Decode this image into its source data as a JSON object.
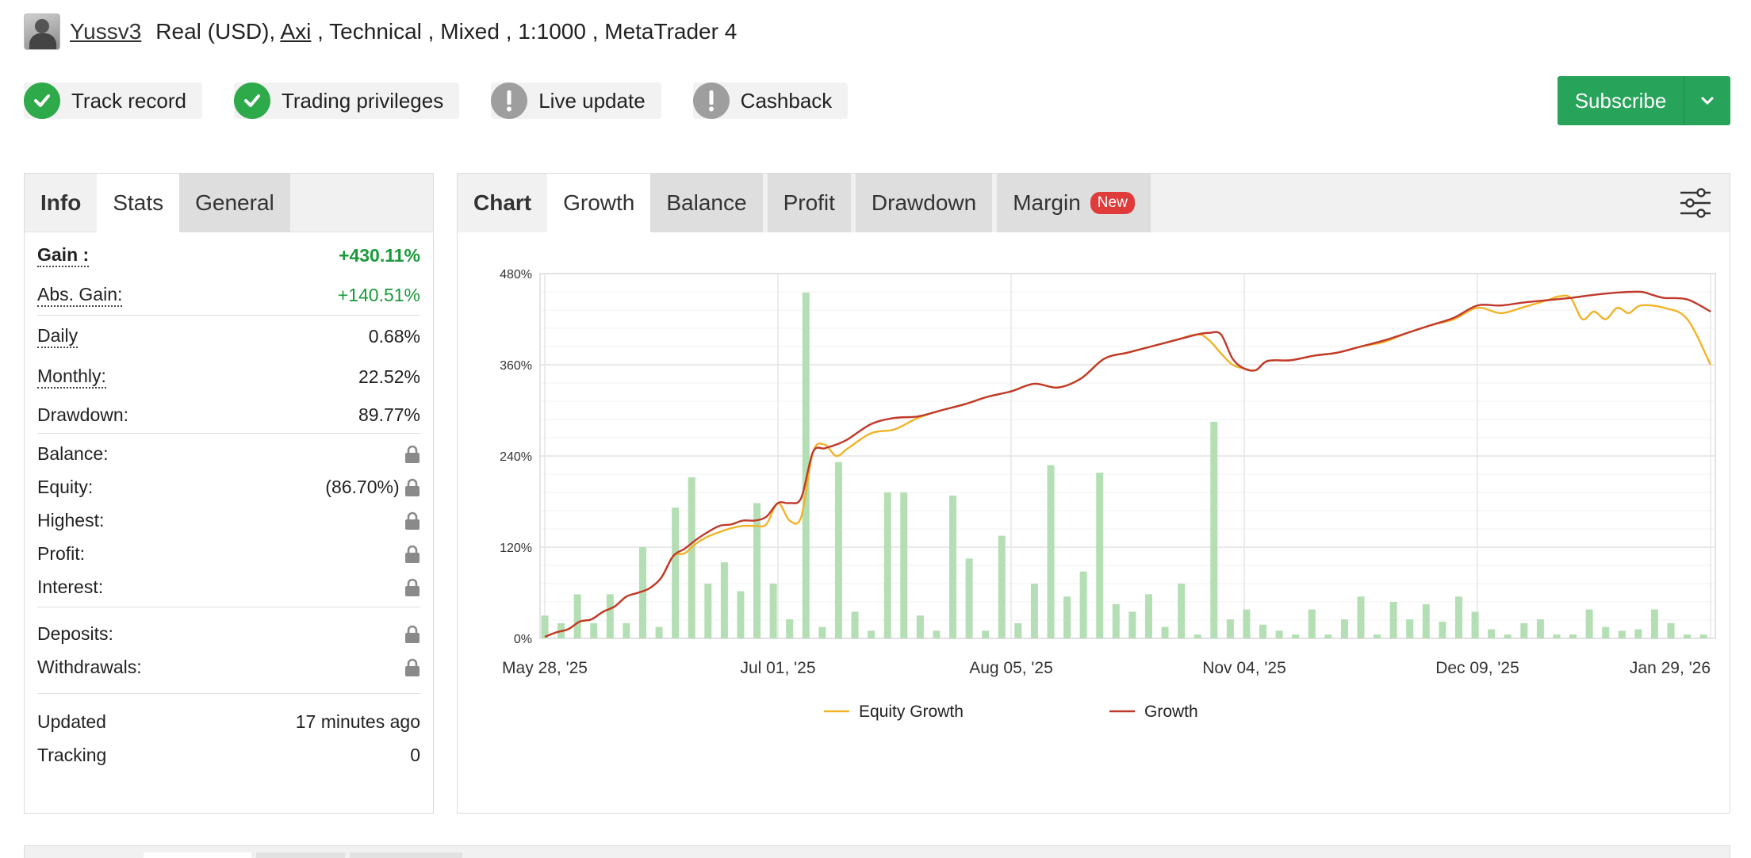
{
  "header": {
    "username": "Yussv3",
    "account_prefix": "Real (USD), ",
    "broker": "Axi",
    "account_suffix": " , Technical , Mixed , 1:1000 , MetaTrader 4"
  },
  "badges": [
    {
      "label": "Track record",
      "status": "ok",
      "icon": "check-icon"
    },
    {
      "label": "Trading privileges",
      "status": "ok",
      "icon": "check-icon"
    },
    {
      "label": "Live update",
      "status": "warn",
      "icon": "exclamation-icon"
    },
    {
      "label": "Cashback",
      "status": "warn",
      "icon": "exclamation-icon"
    }
  ],
  "subscribe": {
    "label": "Subscribe"
  },
  "colors": {
    "green": "#27a35a",
    "gain": "#1a9a3a",
    "equity_line": "#f0b429",
    "growth_line": "#c0392b",
    "bars": "#b4deb4"
  },
  "left_tabs": {
    "title": "Info",
    "active": "Stats",
    "other": "General"
  },
  "stats": {
    "gain_label": "Gain :",
    "gain": "+430.11%",
    "abs_gain_label": "Abs. Gain:",
    "abs_gain": "+140.51%",
    "daily_label": "Daily",
    "daily": "0.68%",
    "monthly_label": "Monthly:",
    "monthly": "22.52%",
    "drawdown_label": "Drawdown:",
    "drawdown": "89.77%",
    "balance_label": "Balance:",
    "equity_label": "Equity:",
    "equity": "(86.70%)",
    "highest_label": "Highest:",
    "profit_label": "Profit:",
    "interest_label": "Interest:",
    "deposits_label": "Deposits:",
    "withdrawals_label": "Withdrawals:",
    "updated_label": "Updated",
    "updated": "17 minutes ago",
    "tracking_label": "Tracking",
    "tracking": "0"
  },
  "chart_tabs": {
    "title": "Chart",
    "active": "Growth",
    "tabs": [
      "Balance",
      "Profit",
      "Drawdown",
      "Margin"
    ],
    "new_badge": "New"
  },
  "chart_data": {
    "type": "line",
    "ylim": [
      0,
      480
    ],
    "yticks": [
      "480%",
      "360%",
      "240%",
      "120%",
      "0%"
    ],
    "ytick_values": [
      480,
      360,
      240,
      120,
      0
    ],
    "xticks": [
      "May 28, '25",
      "Jul 01, '25",
      "Aug 05, '25",
      "Nov 04, '25",
      "Dec 09, '25",
      "Jan 29, '26"
    ],
    "xtick_pos": [
      0,
      0.2,
      0.4,
      0.6,
      0.8,
      1.0
    ],
    "legend": [
      "Equity Growth",
      "Growth"
    ],
    "growth": [
      [
        0,
        2
      ],
      [
        0.01,
        8
      ],
      [
        0.02,
        12
      ],
      [
        0.03,
        22
      ],
      [
        0.04,
        25
      ],
      [
        0.05,
        35
      ],
      [
        0.06,
        42
      ],
      [
        0.07,
        55
      ],
      [
        0.08,
        60
      ],
      [
        0.09,
        66
      ],
      [
        0.1,
        80
      ],
      [
        0.11,
        108
      ],
      [
        0.12,
        118
      ],
      [
        0.13,
        130
      ],
      [
        0.14,
        140
      ],
      [
        0.15,
        148
      ],
      [
        0.16,
        150
      ],
      [
        0.17,
        155
      ],
      [
        0.18,
        155
      ],
      [
        0.19,
        160
      ],
      [
        0.2,
        178
      ],
      [
        0.21,
        178
      ],
      [
        0.22,
        185
      ],
      [
        0.23,
        245
      ],
      [
        0.24,
        250
      ],
      [
        0.25,
        255
      ],
      [
        0.26,
        262
      ],
      [
        0.28,
        282
      ],
      [
        0.3,
        290
      ],
      [
        0.32,
        292
      ],
      [
        0.34,
        300
      ],
      [
        0.36,
        308
      ],
      [
        0.38,
        318
      ],
      [
        0.4,
        325
      ],
      [
        0.42,
        335
      ],
      [
        0.44,
        330
      ],
      [
        0.46,
        342
      ],
      [
        0.48,
        368
      ],
      [
        0.5,
        376
      ],
      [
        0.52,
        384
      ],
      [
        0.54,
        392
      ],
      [
        0.56,
        400
      ],
      [
        0.57,
        402
      ],
      [
        0.58,
        400
      ],
      [
        0.59,
        368
      ],
      [
        0.6,
        355
      ],
      [
        0.61,
        353
      ],
      [
        0.62,
        365
      ],
      [
        0.64,
        366
      ],
      [
        0.66,
        372
      ],
      [
        0.68,
        376
      ],
      [
        0.7,
        384
      ],
      [
        0.72,
        392
      ],
      [
        0.74,
        402
      ],
      [
        0.76,
        412
      ],
      [
        0.78,
        422
      ],
      [
        0.8,
        438
      ],
      [
        0.82,
        438
      ],
      [
        0.84,
        442
      ],
      [
        0.86,
        445
      ],
      [
        0.88,
        448
      ],
      [
        0.9,
        452
      ],
      [
        0.92,
        455
      ],
      [
        0.94,
        456
      ],
      [
        0.95,
        452
      ],
      [
        0.96,
        448
      ],
      [
        0.98,
        446
      ],
      [
        1.0,
        430
      ]
    ],
    "equity": [
      [
        0,
        2
      ],
      [
        0.01,
        8
      ],
      [
        0.02,
        12
      ],
      [
        0.03,
        22
      ],
      [
        0.04,
        25
      ],
      [
        0.05,
        35
      ],
      [
        0.06,
        42
      ],
      [
        0.07,
        55
      ],
      [
        0.08,
        60
      ],
      [
        0.09,
        66
      ],
      [
        0.1,
        80
      ],
      [
        0.11,
        108
      ],
      [
        0.12,
        112
      ],
      [
        0.13,
        125
      ],
      [
        0.14,
        134
      ],
      [
        0.15,
        140
      ],
      [
        0.16,
        145
      ],
      [
        0.17,
        148
      ],
      [
        0.18,
        148
      ],
      [
        0.19,
        150
      ],
      [
        0.2,
        178
      ],
      [
        0.21,
        155
      ],
      [
        0.22,
        160
      ],
      [
        0.23,
        245
      ],
      [
        0.24,
        255
      ],
      [
        0.25,
        240
      ],
      [
        0.26,
        250
      ],
      [
        0.28,
        270
      ],
      [
        0.3,
        275
      ],
      [
        0.32,
        290
      ],
      [
        0.34,
        300
      ],
      [
        0.36,
        308
      ],
      [
        0.38,
        318
      ],
      [
        0.4,
        325
      ],
      [
        0.42,
        335
      ],
      [
        0.44,
        330
      ],
      [
        0.46,
        342
      ],
      [
        0.48,
        368
      ],
      [
        0.5,
        376
      ],
      [
        0.52,
        384
      ],
      [
        0.54,
        392
      ],
      [
        0.56,
        400
      ],
      [
        0.57,
        392
      ],
      [
        0.58,
        375
      ],
      [
        0.59,
        360
      ],
      [
        0.6,
        355
      ],
      [
        0.61,
        353
      ],
      [
        0.62,
        365
      ],
      [
        0.64,
        366
      ],
      [
        0.66,
        372
      ],
      [
        0.68,
        376
      ],
      [
        0.7,
        384
      ],
      [
        0.72,
        390
      ],
      [
        0.74,
        402
      ],
      [
        0.76,
        412
      ],
      [
        0.78,
        420
      ],
      [
        0.8,
        435
      ],
      [
        0.82,
        428
      ],
      [
        0.84,
        436
      ],
      [
        0.86,
        445
      ],
      [
        0.87,
        450
      ],
      [
        0.88,
        448
      ],
      [
        0.89,
        420
      ],
      [
        0.9,
        430
      ],
      [
        0.91,
        420
      ],
      [
        0.92,
        435
      ],
      [
        0.93,
        428
      ],
      [
        0.94,
        438
      ],
      [
        0.96,
        435
      ],
      [
        0.98,
        420
      ],
      [
        1.0,
        360
      ]
    ],
    "bars": [
      [
        0.0,
        30
      ],
      [
        0.014,
        20
      ],
      [
        0.028,
        58
      ],
      [
        0.042,
        20
      ],
      [
        0.056,
        58
      ],
      [
        0.07,
        20
      ],
      [
        0.084,
        120
      ],
      [
        0.098,
        15
      ],
      [
        0.112,
        172
      ],
      [
        0.126,
        212
      ],
      [
        0.14,
        72
      ],
      [
        0.154,
        100
      ],
      [
        0.168,
        62
      ],
      [
        0.182,
        178
      ],
      [
        0.196,
        72
      ],
      [
        0.21,
        25
      ],
      [
        0.224,
        455
      ],
      [
        0.238,
        15
      ],
      [
        0.252,
        232
      ],
      [
        0.266,
        35
      ],
      [
        0.28,
        10
      ],
      [
        0.294,
        192
      ],
      [
        0.308,
        192
      ],
      [
        0.322,
        30
      ],
      [
        0.336,
        10
      ],
      [
        0.35,
        188
      ],
      [
        0.364,
        105
      ],
      [
        0.378,
        10
      ],
      [
        0.392,
        135
      ],
      [
        0.406,
        20
      ],
      [
        0.42,
        72
      ],
      [
        0.434,
        228
      ],
      [
        0.448,
        55
      ],
      [
        0.462,
        88
      ],
      [
        0.476,
        218
      ],
      [
        0.49,
        45
      ],
      [
        0.504,
        35
      ],
      [
        0.518,
        58
      ],
      [
        0.532,
        15
      ],
      [
        0.546,
        72
      ],
      [
        0.56,
        5
      ],
      [
        0.574,
        285
      ],
      [
        0.588,
        25
      ],
      [
        0.602,
        38
      ],
      [
        0.616,
        18
      ],
      [
        0.63,
        10
      ],
      [
        0.644,
        5
      ],
      [
        0.658,
        38
      ],
      [
        0.672,
        5
      ],
      [
        0.686,
        25
      ],
      [
        0.7,
        55
      ],
      [
        0.714,
        5
      ],
      [
        0.728,
        48
      ],
      [
        0.742,
        25
      ],
      [
        0.756,
        45
      ],
      [
        0.77,
        22
      ],
      [
        0.784,
        55
      ],
      [
        0.798,
        35
      ],
      [
        0.812,
        12
      ],
      [
        0.826,
        5
      ],
      [
        0.84,
        20
      ],
      [
        0.854,
        25
      ],
      [
        0.868,
        5
      ],
      [
        0.882,
        5
      ],
      [
        0.896,
        38
      ],
      [
        0.91,
        15
      ],
      [
        0.924,
        10
      ],
      [
        0.938,
        12
      ],
      [
        0.952,
        38
      ],
      [
        0.966,
        20
      ],
      [
        0.98,
        5
      ],
      [
        0.994,
        5
      ]
    ]
  }
}
